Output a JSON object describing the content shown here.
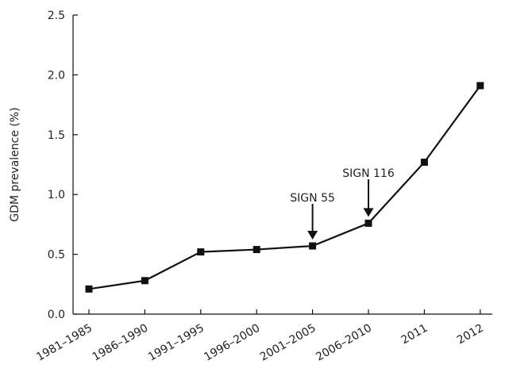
{
  "chart_data": {
    "type": "line",
    "title": "",
    "xlabel": "",
    "ylabel": "GDM prevalence (%)",
    "ylim": [
      0,
      2.5
    ],
    "yticks": [
      0,
      0.5,
      1,
      1.5,
      2,
      2.5
    ],
    "ytick_labels": [
      "0.0",
      "0.5",
      "1.0",
      "1.5",
      "2.0",
      "2.5"
    ],
    "categories": [
      "1981–1985",
      "1986–1990",
      "1991–1995",
      "1996–2000",
      "2001–2005",
      "2006–2010",
      "2011",
      "2012"
    ],
    "series": [
      {
        "values": [
          0.21,
          0.28,
          0.52,
          0.54,
          0.57,
          0.76,
          1.27,
          1.91
        ],
        "color": "#111111",
        "marker": "square"
      }
    ],
    "annotations": [
      {
        "text": "SIGN 55",
        "category": "2001–2005",
        "value": 0.57
      },
      {
        "text": "SIGN 116",
        "category": "2006–2010",
        "value": 0.76
      }
    ],
    "grid": false,
    "legend": "none"
  }
}
